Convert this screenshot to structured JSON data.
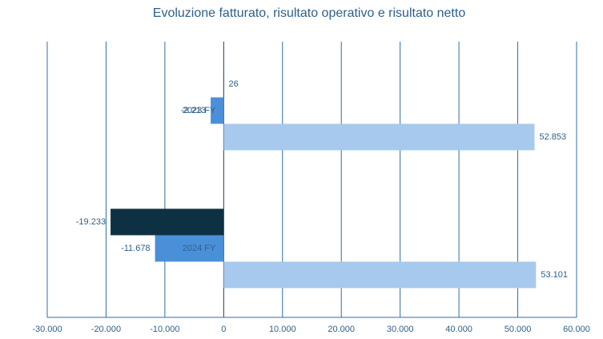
{
  "chart_data": {
    "type": "hbar",
    "title": "Evoluzione fatturato, risultato operativo e risultato netto",
    "categories": [
      "2023 FY",
      "2024 FY"
    ],
    "series": [
      {
        "color": "#0d3142",
        "values": [
          26,
          -19233
        ],
        "value_labels": [
          "26",
          "-19.233"
        ]
      },
      {
        "color": "#4a90d9",
        "values": [
          -2213,
          -11678
        ],
        "value_labels": [
          "-2.213",
          "-11.678"
        ]
      },
      {
        "color": "#a8c9ee",
        "values": [
          52853,
          53101
        ],
        "value_labels": [
          "52.853",
          "53.101"
        ]
      }
    ],
    "xlim": [
      -30000,
      60000
    ],
    "xticks": [
      {
        "value": -30000,
        "label": "-30.000"
      },
      {
        "value": -20000,
        "label": "-20.000"
      },
      {
        "value": -10000,
        "label": "-10.000"
      },
      0,
      {
        "value": 10000,
        "label": "10.000"
      },
      {
        "value": 20000,
        "label": "20.000"
      },
      {
        "value": 30000,
        "label": "30.000"
      },
      {
        "value": 40000,
        "label": "40.000"
      },
      {
        "value": 50000,
        "label": "50.000"
      },
      {
        "value": 60000,
        "label": "60.000"
      }
    ],
    "grid": true
  }
}
